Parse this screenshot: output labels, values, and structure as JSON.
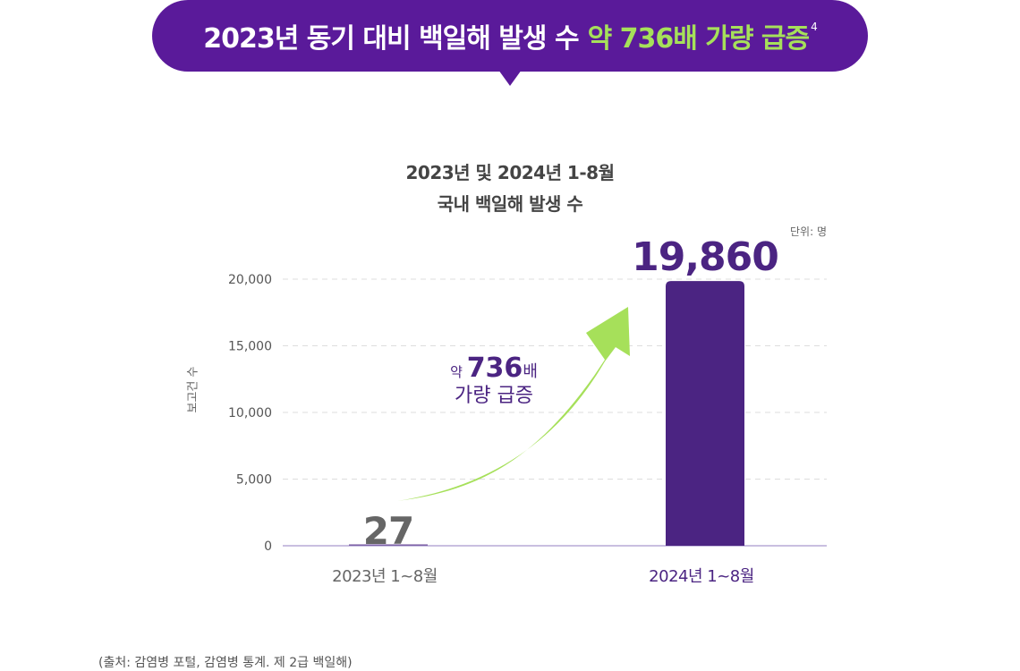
{
  "banner": {
    "text_main": "2023년 동기 대비 백일해 발생 수",
    "text_highlight": "약 736배 가량 급증",
    "footnote": "4"
  },
  "chart_data": {
    "type": "bar",
    "title_line1": "2023년 및 2024년 1-8월",
    "title_line2": "국내 백일해 발생 수",
    "unit_label": "단위: 명",
    "ylabel": "보고건 수",
    "categories": [
      "2023년 1~8월",
      "2024년 1~8월"
    ],
    "values": [
      27,
      19860
    ],
    "value_labels": [
      "27",
      "19,860"
    ],
    "ylim": [
      0,
      20000
    ],
    "yticks": [
      0,
      5000,
      10000,
      15000,
      20000
    ],
    "ytick_labels": [
      "0",
      "5,000",
      "10,000",
      "15,000",
      "20,000"
    ],
    "grid": true,
    "annotation": {
      "prefix": "약",
      "number": "736",
      "suffix": "배",
      "line2": "가량 급증"
    },
    "colors": {
      "bar_2024": "#4b2482",
      "label_2023": "#666666",
      "label_2024": "#4b2482",
      "arrow": "#a6e05a",
      "grid": "#dddddd",
      "axis": "#c9bfe0"
    }
  },
  "source": "(출처: 감염병 포털, 감염병 통계. 제 2급 백일해)"
}
